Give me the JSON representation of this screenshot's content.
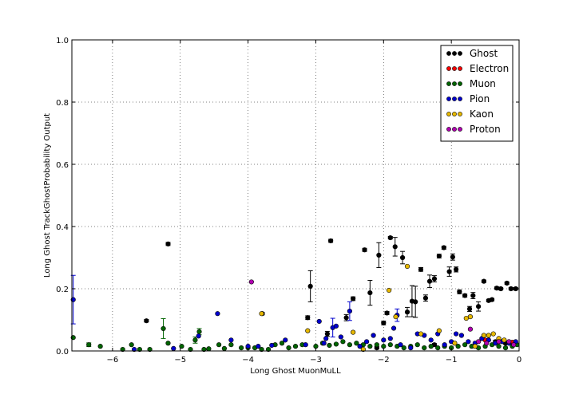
{
  "chart_data": {
    "type": "scatter",
    "xlabel": "Long Ghost MuonMuLL",
    "ylabel": "Long Ghost TrackGhostProbability Output",
    "xlim": [
      -6.6,
      0
    ],
    "ylim": [
      0,
      1.0
    ],
    "xticks": [
      -6,
      -5,
      -4,
      -3,
      -2,
      -1,
      0
    ],
    "yticks": [
      0.0,
      0.2,
      0.4,
      0.6,
      0.8,
      1.0
    ],
    "xtick_labels": [
      "−6",
      "−5",
      "−4",
      "−3",
      "−2",
      "−1",
      "0"
    ],
    "ytick_labels": [
      "0.0",
      "0.2",
      "0.4",
      "0.6",
      "0.8",
      "1.0"
    ],
    "grid": true,
    "legend_position": "top-right",
    "series": [
      {
        "name": "Ghost",
        "color": "#000000",
        "points": [
          [
            -5.5,
            0.097,
            0.004
          ],
          [
            -5.18,
            0.344,
            0.005
          ],
          [
            -3.79,
            0.12,
            0.004
          ],
          [
            -3.12,
            0.107,
            0.006
          ],
          [
            -3.08,
            0.208,
            0.05
          ],
          [
            -2.83,
            0.055,
            0.008
          ],
          [
            -2.78,
            0.354,
            0.005
          ],
          [
            -2.55,
            0.107,
            0.01
          ],
          [
            -2.45,
            0.168,
            0.006
          ],
          [
            -2.28,
            0.325,
            0.005
          ],
          [
            -2.2,
            0.187,
            0.04
          ],
          [
            -2.07,
            0.308,
            0.04
          ],
          [
            -2.0,
            0.09,
            0.006
          ],
          [
            -1.95,
            0.122,
            0.005
          ],
          [
            -1.9,
            0.364,
            0.004
          ],
          [
            -1.83,
            0.335,
            0.03
          ],
          [
            -1.72,
            0.3,
            0.02
          ],
          [
            -1.65,
            0.125,
            0.015
          ],
          [
            -1.58,
            0.16,
            0.05
          ],
          [
            -1.53,
            0.158,
            0.05
          ],
          [
            -1.45,
            0.262,
            0.006
          ],
          [
            -1.38,
            0.17,
            0.01
          ],
          [
            -1.32,
            0.224,
            0.02
          ],
          [
            -1.25,
            0.232,
            0.01
          ],
          [
            -1.18,
            0.305,
            0.006
          ],
          [
            -1.11,
            0.332,
            0.005
          ],
          [
            -1.03,
            0.255,
            0.015
          ],
          [
            -0.98,
            0.302,
            0.01
          ],
          [
            -0.93,
            0.262,
            0.008
          ],
          [
            -0.88,
            0.19,
            0.006
          ],
          [
            -0.8,
            0.178,
            0.005
          ],
          [
            -0.73,
            0.135,
            0.008
          ],
          [
            -0.68,
            0.178,
            0.01
          ],
          [
            -0.6,
            0.143,
            0.015
          ],
          [
            -0.52,
            0.224,
            0.004
          ],
          [
            -0.45,
            0.162,
            0.004
          ],
          [
            -0.4,
            0.165,
            0.004
          ],
          [
            -0.33,
            0.202,
            0.004
          ],
          [
            -0.27,
            0.2,
            0.004
          ],
          [
            -0.18,
            0.218,
            0.004
          ],
          [
            -0.12,
            0.2,
            0.004
          ],
          [
            -0.05,
            0.2,
            0.004
          ],
          [
            -0.35,
            0.03,
            0.004
          ],
          [
            -0.2,
            0.025,
            0.004
          ],
          [
            -2.1,
            0.01,
            0.004
          ],
          [
            -1.25,
            0.02,
            0.004
          ]
        ]
      },
      {
        "name": "Electron",
        "color": "#ff0000",
        "points": [
          [
            -0.5,
            0.035,
            0
          ],
          [
            -0.25,
            0.03,
            0
          ],
          [
            -0.1,
            0.028,
            0
          ]
        ]
      },
      {
        "name": "Muon",
        "color": "#006400",
        "points": [
          [
            -6.58,
            0.043,
            0
          ],
          [
            -6.35,
            0.02,
            0.006
          ],
          [
            -6.18,
            0.015,
            0
          ],
          [
            -5.85,
            0.005,
            0
          ],
          [
            -5.72,
            0.02,
            0
          ],
          [
            -5.6,
            0.005,
            0
          ],
          [
            -5.45,
            0.005,
            0
          ],
          [
            -5.25,
            0.072,
            0.032
          ],
          [
            -5.18,
            0.025,
            0
          ],
          [
            -4.98,
            0.015,
            0
          ],
          [
            -4.85,
            0.005,
            0
          ],
          [
            -4.78,
            0.035,
            0.01
          ],
          [
            -4.72,
            0.062,
            0.01
          ],
          [
            -4.65,
            0.005,
            0
          ],
          [
            -4.58,
            0.007,
            0
          ],
          [
            -4.43,
            0.02,
            0
          ],
          [
            -4.35,
            0.008,
            0
          ],
          [
            -4.25,
            0.02,
            0
          ],
          [
            -4.1,
            0.01,
            0
          ],
          [
            -4.0,
            0.01,
            0
          ],
          [
            -3.9,
            0.01,
            0
          ],
          [
            -3.8,
            0.005,
            0
          ],
          [
            -3.7,
            0.005,
            0
          ],
          [
            -3.6,
            0.02,
            0
          ],
          [
            -3.5,
            0.025,
            0
          ],
          [
            -3.4,
            0.01,
            0
          ],
          [
            -3.3,
            0.015,
            0
          ],
          [
            -3.2,
            0.02,
            0
          ],
          [
            -3.0,
            0.015,
            0
          ],
          [
            -2.9,
            0.025,
            0
          ],
          [
            -2.8,
            0.018,
            0
          ],
          [
            -2.7,
            0.022,
            0
          ],
          [
            -2.6,
            0.03,
            0
          ],
          [
            -2.5,
            0.02,
            0
          ],
          [
            -2.4,
            0.025,
            0
          ],
          [
            -2.3,
            0.02,
            0
          ],
          [
            -2.2,
            0.015,
            0
          ],
          [
            -2.1,
            0.02,
            0
          ],
          [
            -2.0,
            0.015,
            0
          ],
          [
            -1.9,
            0.02,
            0
          ],
          [
            -1.8,
            0.015,
            0
          ],
          [
            -1.7,
            0.01,
            0
          ],
          [
            -1.6,
            0.015,
            0
          ],
          [
            -1.5,
            0.02,
            0
          ],
          [
            -1.4,
            0.01,
            0
          ],
          [
            -1.3,
            0.015,
            0
          ],
          [
            -1.2,
            0.01,
            0
          ],
          [
            -1.1,
            0.015,
            0
          ],
          [
            -1.0,
            0.01,
            0
          ],
          [
            -0.9,
            0.015,
            0
          ],
          [
            -0.8,
            0.02,
            0
          ],
          [
            -0.7,
            0.015,
            0
          ],
          [
            -0.6,
            0.01,
            0
          ],
          [
            -0.5,
            0.015,
            0
          ],
          [
            -0.4,
            0.02,
            0
          ],
          [
            -0.3,
            0.015,
            0
          ],
          [
            -0.2,
            0.01,
            0
          ],
          [
            -0.1,
            0.015,
            0
          ],
          [
            -0.03,
            0.02,
            0
          ]
        ]
      },
      {
        "name": "Pion",
        "color": "#0000cd",
        "points": [
          [
            -6.58,
            0.165,
            0.078
          ],
          [
            -5.68,
            0.005,
            0
          ],
          [
            -5.1,
            0.008,
            0
          ],
          [
            -4.73,
            0.048,
            0
          ],
          [
            -4.45,
            0.12,
            0
          ],
          [
            -4.25,
            0.035,
            0
          ],
          [
            -4.0,
            0.015,
            0
          ],
          [
            -3.85,
            0.015,
            0
          ],
          [
            -3.65,
            0.018,
            0
          ],
          [
            -3.45,
            0.035,
            0
          ],
          [
            -3.15,
            0.02,
            0
          ],
          [
            -2.95,
            0.095,
            0
          ],
          [
            -2.88,
            0.025,
            0
          ],
          [
            -2.85,
            0.04,
            0
          ],
          [
            -2.75,
            0.075,
            0.03
          ],
          [
            -2.7,
            0.08,
            0
          ],
          [
            -2.63,
            0.045,
            0
          ],
          [
            -2.5,
            0.128,
            0.03
          ],
          [
            -2.35,
            0.015,
            0
          ],
          [
            -2.25,
            0.03,
            0
          ],
          [
            -2.15,
            0.05,
            0
          ],
          [
            -2.0,
            0.035,
            0
          ],
          [
            -1.9,
            0.04,
            0
          ],
          [
            -1.85,
            0.073,
            0
          ],
          [
            -1.8,
            0.115,
            0.02
          ],
          [
            -1.75,
            0.02,
            0
          ],
          [
            -1.6,
            0.01,
            0
          ],
          [
            -1.5,
            0.055,
            0
          ],
          [
            -1.4,
            0.05,
            0
          ],
          [
            -1.3,
            0.035,
            0
          ],
          [
            -1.2,
            0.055,
            0
          ],
          [
            -1.1,
            0.02,
            0
          ],
          [
            -1.0,
            0.03,
            0
          ],
          [
            -0.93,
            0.055,
            0
          ],
          [
            -0.85,
            0.05,
            0
          ],
          [
            -0.75,
            0.03,
            0
          ],
          [
            -0.65,
            0.025,
            0
          ],
          [
            -0.55,
            0.04,
            0
          ],
          [
            -0.45,
            0.035,
            0
          ],
          [
            -0.35,
            0.025,
            0
          ],
          [
            -0.25,
            0.03,
            0
          ],
          [
            -0.15,
            0.025,
            0
          ],
          [
            -0.05,
            0.03,
            0
          ]
        ]
      },
      {
        "name": "Kaon",
        "color": "#e6b800",
        "points": [
          [
            -3.8,
            0.12,
            0
          ],
          [
            -3.12,
            0.065,
            0
          ],
          [
            -2.45,
            0.06,
            0
          ],
          [
            -2.3,
            0.005,
            0
          ],
          [
            -1.92,
            0.195,
            0
          ],
          [
            -1.82,
            0.11,
            0
          ],
          [
            -1.65,
            0.272,
            0
          ],
          [
            -1.45,
            0.055,
            0
          ],
          [
            -1.18,
            0.065,
            0
          ],
          [
            -0.95,
            0.025,
            0
          ],
          [
            -0.78,
            0.105,
            0
          ],
          [
            -0.72,
            0.11,
            0
          ],
          [
            -0.65,
            0.015,
            0
          ],
          [
            -0.52,
            0.05,
            0
          ],
          [
            -0.45,
            0.05,
            0
          ],
          [
            -0.38,
            0.055,
            0
          ],
          [
            -0.3,
            0.04,
            0
          ],
          [
            -0.22,
            0.035,
            0
          ]
        ]
      },
      {
        "name": "Proton",
        "color": "#b000b0",
        "points": [
          [
            -3.95,
            0.222,
            0
          ],
          [
            -0.72,
            0.07,
            0
          ],
          [
            -0.6,
            0.03,
            0
          ],
          [
            -0.48,
            0.025,
            0
          ],
          [
            -0.3,
            0.03,
            0
          ],
          [
            -0.15,
            0.03,
            0
          ],
          [
            -0.08,
            0.02,
            0
          ]
        ]
      }
    ]
  }
}
